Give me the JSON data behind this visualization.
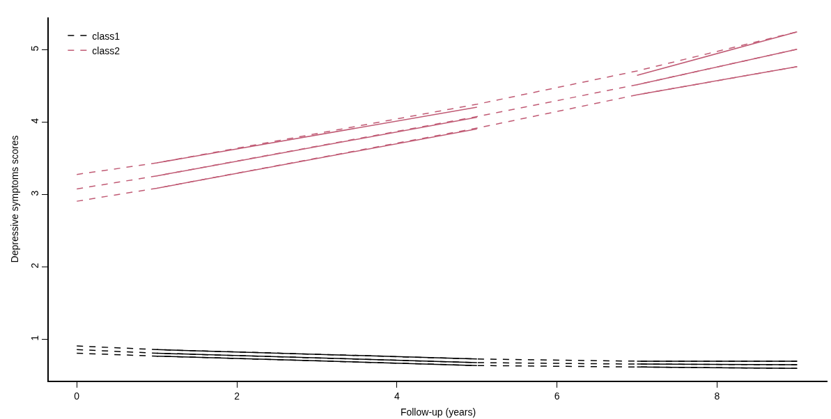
{
  "chart_data": {
    "type": "line",
    "xlabel": "Follow-up (years)",
    "ylabel": "Depressive symptoms scores",
    "xlim": [
      -0.35,
      9.38
    ],
    "ylim": [
      0.43,
      5.45
    ],
    "xticks": [
      0,
      2,
      4,
      6,
      8
    ],
    "yticks": [
      1,
      2,
      3,
      4,
      5
    ],
    "grid": false,
    "legend": "top left",
    "marker": "none",
    "series": [
      {
        "name": "class1",
        "color": "#000000",
        "line_style": "dashed",
        "x": [
          0,
          1,
          5,
          7,
          9
        ],
        "values": [
          0.86,
          0.81,
          0.68,
          0.66,
          0.65
        ]
      },
      {
        "color": "#000000",
        "line_style": "dashed",
        "x": [
          0,
          1,
          5,
          7,
          9
        ],
        "values": [
          0.91,
          0.86,
          0.73,
          0.7,
          0.7
        ]
      },
      {
        "color": "#000000",
        "line_style": "dashed",
        "x": [
          0,
          1,
          5,
          7,
          9
        ],
        "values": [
          0.81,
          0.77,
          0.64,
          0.62,
          0.6
        ]
      },
      {
        "color": "#000000",
        "line_style": "solid",
        "x": [
          1,
          5,
          6,
          7,
          9
        ],
        "values": [
          0.86,
          0.73,
          null,
          0.7,
          0.7
        ]
      },
      {
        "color": "#000000",
        "line_style": "solid",
        "x": [
          1,
          5,
          6,
          7,
          9
        ],
        "values": [
          0.81,
          0.68,
          null,
          0.66,
          0.65
        ]
      },
      {
        "color": "#000000",
        "line_style": "solid",
        "x": [
          1,
          5,
          6,
          7,
          9
        ],
        "values": [
          0.77,
          0.64,
          null,
          0.62,
          0.6
        ]
      },
      {
        "name": "class2",
        "color": "#c05a74",
        "line_style": "dashed",
        "x": [
          0,
          1,
          5,
          7,
          9
        ],
        "values": [
          3.08,
          3.26,
          4.08,
          4.52,
          5.01
        ]
      },
      {
        "color": "#c05a74",
        "line_style": "dashed",
        "x": [
          0,
          1,
          5,
          7,
          9
        ],
        "values": [
          3.28,
          3.44,
          4.25,
          4.71,
          5.25
        ]
      },
      {
        "color": "#c05a74",
        "line_style": "dashed",
        "x": [
          0,
          1,
          5,
          7,
          9
        ],
        "values": [
          2.91,
          3.09,
          3.92,
          4.38,
          4.77
        ]
      },
      {
        "color": "#c05a74",
        "line_style": "solid",
        "x": [
          1,
          5,
          6,
          7,
          9
        ],
        "values": [
          3.44,
          4.21,
          null,
          4.65,
          5.25
        ]
      },
      {
        "color": "#c05a74",
        "line_style": "solid",
        "x": [
          1,
          5,
          6,
          7,
          9
        ],
        "values": [
          3.26,
          4.07,
          null,
          4.52,
          5.01
        ]
      },
      {
        "color": "#c05a74",
        "line_style": "solid",
        "x": [
          1,
          5,
          6,
          7,
          9
        ],
        "values": [
          3.09,
          3.91,
          null,
          4.38,
          4.77
        ]
      }
    ]
  }
}
